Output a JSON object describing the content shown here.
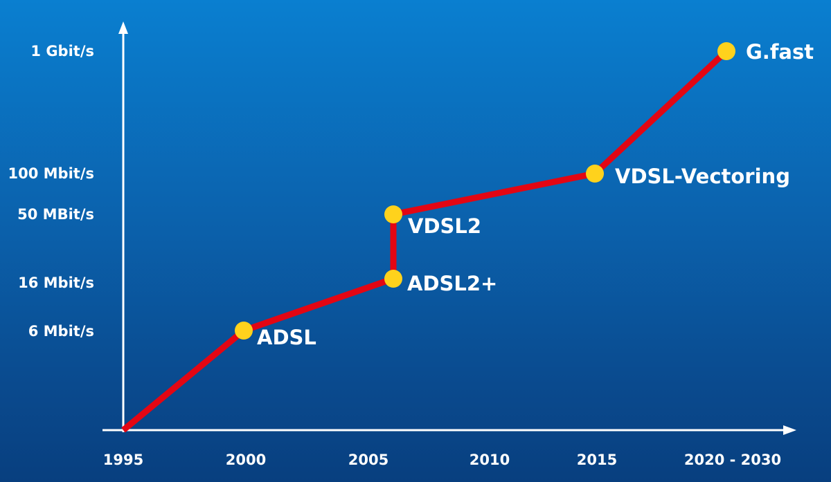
{
  "colors": {
    "line": "#e30613",
    "marker": "#ffd21c",
    "axis": "#ffffff",
    "background_top": "#0a7fd0",
    "background_bottom": "#083f7f"
  },
  "chart_data": {
    "type": "line",
    "title": "",
    "xlabel": "",
    "ylabel": "",
    "x_ticks": [
      "1995",
      "2000",
      "2005",
      "2010",
      "2015",
      "2020 - 2030"
    ],
    "y_ticks": [
      "6 Mbit/s",
      "16 Mbit/s",
      "50 MBit/s",
      "100 Mbit/s",
      "1 Gbit/s"
    ],
    "y_tick_values_mbit": [
      6,
      16,
      50,
      100,
      1000
    ],
    "series": [
      {
        "points": [
          {
            "x": 1995,
            "y_mbit": null,
            "label": ""
          },
          {
            "x": 2000,
            "y_mbit": 6,
            "label": "ADSL"
          },
          {
            "x": 2006,
            "y_mbit": 16,
            "label": "ADSL2+"
          },
          {
            "x": 2006,
            "y_mbit": 50,
            "label": "VDSL2"
          },
          {
            "x": 2014,
            "y_mbit": 100,
            "label": "VDSL-Vectoring"
          },
          {
            "x": 2020,
            "y_mbit": 1000,
            "label": "G.fast"
          }
        ]
      }
    ],
    "grid": false,
    "legend": "none"
  }
}
